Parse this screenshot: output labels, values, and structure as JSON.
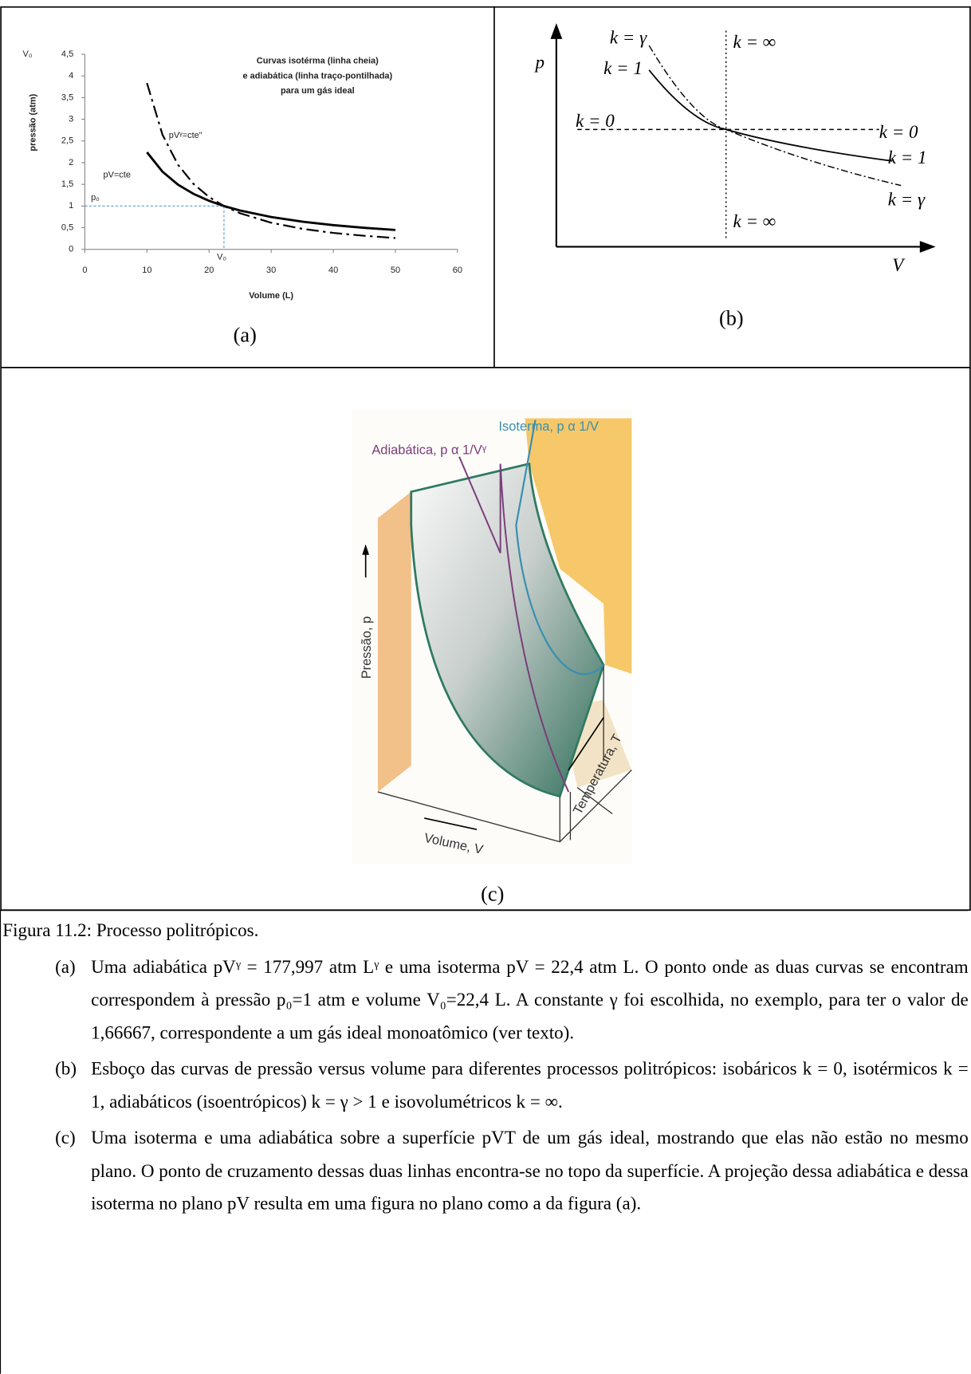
{
  "chart_data": {
    "type": "line",
    "title": [
      "Curvas isotérma (linha cheia)",
      "e adiabática (linha traço-pontilhada)",
      "para um gás ideal"
    ],
    "x_label": "Volume (L)",
    "y_label": "pressão (atm)",
    "x": [
      10,
      12.5,
      15,
      17.5,
      20,
      22.4,
      25,
      30,
      35,
      40,
      45,
      50
    ],
    "series": [
      {
        "name": "pV=cte",
        "color": "#000000",
        "dash": "solid",
        "values": [
          2.24,
          1.792,
          1.493,
          1.28,
          1.12,
          1.0,
          0.896,
          0.747,
          0.64,
          0.56,
          0.498,
          0.448
        ]
      },
      {
        "name": "pVᵞ=cte\"",
        "color": "#000000",
        "dash": "dash-dot",
        "values": [
          3.835,
          2.644,
          1.951,
          1.509,
          1.208,
          1.0,
          0.833,
          0.615,
          0.475,
          0.38,
          0.313,
          0.262
        ]
      }
    ],
    "xlim": [
      0,
      60
    ],
    "xticks": [
      0,
      10,
      20,
      30,
      40,
      50,
      60
    ],
    "ylim": [
      0,
      4.5
    ],
    "yticks": [
      0,
      {
        "value": 0.5,
        "label": "0,5"
      },
      1,
      {
        "value": 1.5,
        "label": "1,5"
      },
      2,
      {
        "value": 2.5,
        "label": "2,5"
      },
      3,
      {
        "value": 3.5,
        "label": "3,5"
      },
      4,
      {
        "value": 4.5,
        "label": "4,5"
      }
    ],
    "reference": {
      "x": 22.4,
      "y": 1,
      "color": "#5b9bd5"
    },
    "annotations": [
      "V₀",
      "p₀",
      "V₀"
    ],
    "caption": "(a)"
  },
  "panel_b": {
    "labels": [
      "p",
      "V",
      "k = γ",
      "k = 1",
      "k = ∞",
      "k = 0",
      "k = 0",
      "k = 1",
      "k = γ",
      "k = ∞"
    ],
    "caption": "(b)"
  },
  "panel_c": {
    "labels": [
      "Isoterma, p α 1/V",
      "Adiabática, p α 1/Vᵞ",
      "Pressão, p",
      "Volume, V",
      "Temperatura, T"
    ],
    "caption": "(c)"
  },
  "caption": {
    "title": "Figura 11.2: Processo politrópicos.",
    "items": [
      {
        "label": "(a)",
        "text": "Uma adiabática pVᵞ = 177,997 atm Lᵞ e uma isoterma pV = 22,4 atm L. O ponto onde as duas curvas se encontram correspondem à pressão p₀=1 atm e volume V₀=22,4 L. A constante γ foi escolhida, no exemplo, para ter o valor de 1,66667, correspondente a um gás ideal monoatômico (ver texto)."
      },
      {
        "label": "(b)",
        "text": "Esboço das curvas de pressão versus volume para diferentes processos politrópicos: isobáricos k = 0, isotérmicos k = 1, adiabáticos (isoentrópicos) k = γ > 1 e isovolumétricos k = ∞."
      },
      {
        "label": "(c)",
        "text": "Uma isoterma e uma adiabática sobre a superfície pVT de um gás ideal, mostrando que elas não estão no mesmo plano. O ponto de cruzamento dessas duas linhas encontra-se no topo da superfície. A projeção dessa adiabática e dessa isoterma no plano pV resulta em uma figura no plano como a da figura (a)."
      }
    ]
  }
}
